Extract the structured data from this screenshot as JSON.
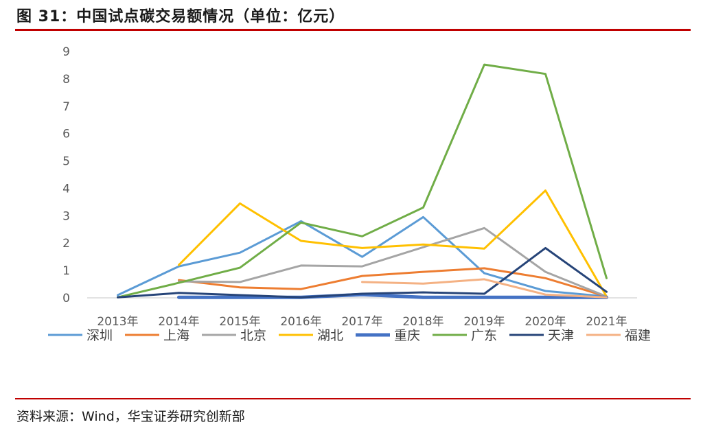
{
  "header": {
    "title": "图 31：中国试点碳交易额情况（单位：亿元）"
  },
  "footer": {
    "source": "资料来源：Wind，华宝证券研究创新部"
  },
  "chart_data": {
    "type": "line",
    "title": "",
    "xlabel": "",
    "ylabel": "",
    "categories": [
      "2013年",
      "2014年",
      "2015年",
      "2016年",
      "2017年",
      "2018年",
      "2019年",
      "2020年",
      "2021年"
    ],
    "ylim": [
      0,
      9
    ],
    "yticks": [
      0,
      1,
      2,
      3,
      4,
      5,
      6,
      7,
      8,
      9
    ],
    "grid": false,
    "legend_position": "bottom",
    "series": [
      {
        "name": "深圳",
        "color": "#5b9bd5",
        "width": 3,
        "values": [
          0.1,
          1.15,
          1.65,
          2.8,
          1.5,
          2.95,
          0.9,
          0.25,
          0.05
        ]
      },
      {
        "name": "上海",
        "color": "#ed7d31",
        "width": 3,
        "values": [
          null,
          0.65,
          0.38,
          0.32,
          0.8,
          0.95,
          1.08,
          0.72,
          0.05
        ]
      },
      {
        "name": "北京",
        "color": "#a5a5a5",
        "width": 3,
        "values": [
          null,
          0.6,
          0.58,
          1.18,
          1.15,
          1.85,
          2.55,
          0.95,
          0.05
        ]
      },
      {
        "name": "湖北",
        "color": "#ffc000",
        "width": 3,
        "values": [
          null,
          1.2,
          3.45,
          2.08,
          1.82,
          1.95,
          1.8,
          3.92,
          0.05
        ]
      },
      {
        "name": "重庆",
        "color": "#4472c4",
        "width": 5,
        "values": [
          null,
          0.02,
          0.02,
          0.02,
          0.12,
          0.02,
          0.02,
          0.02,
          0.02
        ]
      },
      {
        "name": "广东",
        "color": "#70ad47",
        "width": 3,
        "values": [
          0.02,
          0.55,
          1.1,
          2.75,
          2.25,
          3.3,
          8.52,
          8.18,
          0.72
        ]
      },
      {
        "name": "天津",
        "color": "#264478",
        "width": 3,
        "values": [
          0.02,
          0.18,
          0.1,
          0.02,
          0.15,
          0.2,
          0.15,
          1.82,
          0.22
        ]
      },
      {
        "name": "福建",
        "color": "#f4b183",
        "width": 3,
        "values": [
          null,
          null,
          null,
          null,
          0.58,
          0.52,
          0.68,
          0.12,
          0.02
        ]
      }
    ]
  }
}
